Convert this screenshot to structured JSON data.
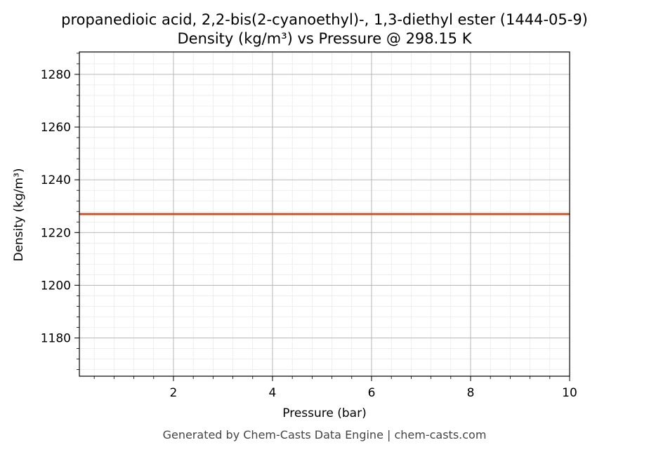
{
  "chart_data": {
    "type": "line",
    "title": "propanedioic acid, 2,2-bis(2-cyanoethyl)-, 1,3-diethyl ester (1444-05-9)",
    "subtitle": "Density (kg/m³) vs Pressure @ 298.15 K",
    "xlabel": "Pressure (bar)",
    "ylabel": "Density (kg/m³)",
    "xlim": [
      0.1,
      10
    ],
    "ylim": [
      1165.5,
      1288.5
    ],
    "x_ticks": [
      2,
      4,
      6,
      8,
      10
    ],
    "y_ticks": [
      1180,
      1200,
      1220,
      1240,
      1260,
      1280
    ],
    "grid": true,
    "series": [
      {
        "color": "#c8522a",
        "x": [
          0.1,
          1,
          2,
          3,
          4,
          5,
          6,
          7,
          8,
          9,
          10
        ],
        "y": [
          1227,
          1227,
          1227,
          1227,
          1227,
          1227,
          1227,
          1227,
          1227,
          1227,
          1227
        ]
      }
    ]
  },
  "footer": "Generated by Chem-Casts Data Engine | chem-casts.com"
}
